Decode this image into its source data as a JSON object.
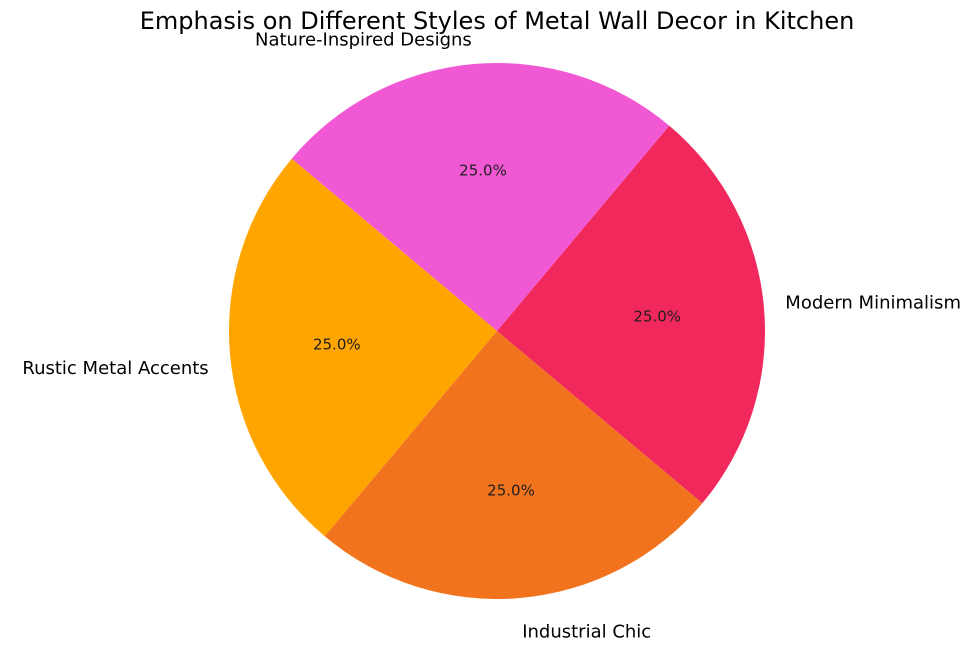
{
  "chart_data": {
    "type": "pie",
    "title": "Emphasis on Different Styles of Metal Wall Decor in Kitchen",
    "labels": [
      "Modern Minimalism",
      "Nature-Inspired Designs",
      "Rustic Metal Accents",
      "Industrial Chic"
    ],
    "values": [
      25.0,
      25.0,
      25.0,
      25.0
    ],
    "percent_labels": [
      "25.0%",
      "25.0%",
      "25.0%",
      "25.0%"
    ],
    "colors": [
      "#F1285C",
      "#F158D4",
      "#FFA500",
      "#F2731E"
    ],
    "start_angle_deg": -40,
    "direction": "counterclockwise",
    "pct_distance": 0.6,
    "label_distance": 1.08,
    "legend": "none",
    "background": "#FFFFFF",
    "percent_text_color": "#1f1f1f",
    "label_text_color": "#000000"
  }
}
